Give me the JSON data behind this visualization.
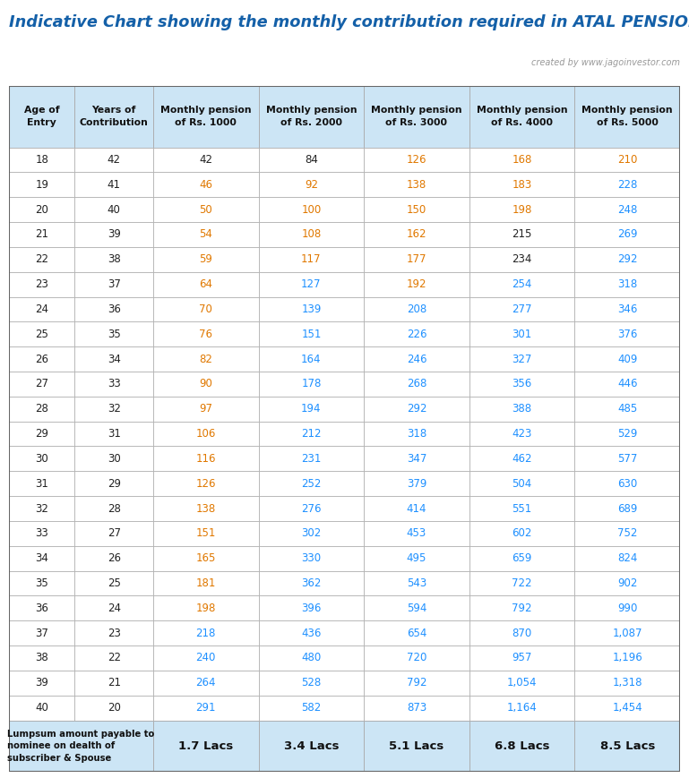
{
  "title": "Indicative Chart showing the monthly contribution required in ATAL PENSION YOJNA",
  "subtitle": "created by www.jagoinvestor.com",
  "col_headers": [
    "Age of\nEntry",
    "Years of\nContribution",
    "Monthly pension\nof Rs. 1000",
    "Monthly pension\nof Rs. 2000",
    "Monthly pension\nof Rs. 3000",
    "Monthly pension\nof Rs. 4000",
    "Monthly pension\nof Rs. 5000"
  ],
  "rows": [
    [
      "18",
      "42",
      "42",
      "84",
      "126",
      "168",
      "210"
    ],
    [
      "19",
      "41",
      "46",
      "92",
      "138",
      "183",
      "228"
    ],
    [
      "20",
      "40",
      "50",
      "100",
      "150",
      "198",
      "248"
    ],
    [
      "21",
      "39",
      "54",
      "108",
      "162",
      "215",
      "269"
    ],
    [
      "22",
      "38",
      "59",
      "117",
      "177",
      "234",
      "292"
    ],
    [
      "23",
      "37",
      "64",
      "127",
      "192",
      "254",
      "318"
    ],
    [
      "24",
      "36",
      "70",
      "139",
      "208",
      "277",
      "346"
    ],
    [
      "25",
      "35",
      "76",
      "151",
      "226",
      "301",
      "376"
    ],
    [
      "26",
      "34",
      "82",
      "164",
      "246",
      "327",
      "409"
    ],
    [
      "27",
      "33",
      "90",
      "178",
      "268",
      "356",
      "446"
    ],
    [
      "28",
      "32",
      "97",
      "194",
      "292",
      "388",
      "485"
    ],
    [
      "29",
      "31",
      "106",
      "212",
      "318",
      "423",
      "529"
    ],
    [
      "30",
      "30",
      "116",
      "231",
      "347",
      "462",
      "577"
    ],
    [
      "31",
      "29",
      "126",
      "252",
      "379",
      "504",
      "630"
    ],
    [
      "32",
      "28",
      "138",
      "276",
      "414",
      "551",
      "689"
    ],
    [
      "33",
      "27",
      "151",
      "302",
      "453",
      "602",
      "752"
    ],
    [
      "34",
      "26",
      "165",
      "330",
      "495",
      "659",
      "824"
    ],
    [
      "35",
      "25",
      "181",
      "362",
      "543",
      "722",
      "902"
    ],
    [
      "36",
      "24",
      "198",
      "396",
      "594",
      "792",
      "990"
    ],
    [
      "37",
      "23",
      "218",
      "436",
      "654",
      "870",
      "1,087"
    ],
    [
      "38",
      "22",
      "240",
      "480",
      "720",
      "957",
      "1,196"
    ],
    [
      "39",
      "21",
      "264",
      "528",
      "792",
      "1,054",
      "1,318"
    ],
    [
      "40",
      "20",
      "291",
      "582",
      "873",
      "1,164",
      "1,454"
    ]
  ],
  "footer_label": "Lumpsum amount payable to\nnominee on dealth of\nsubscriber & Spouse",
  "footer_values": [
    "1.7 Lacs",
    "3.4 Lacs",
    "5.1 Lacs",
    "6.8 Lacs",
    "8.5 Lacs"
  ],
  "color_orange": "#E07800",
  "color_blue": "#1E90FF",
  "color_dark": "#222222",
  "header_bg": "#cce5f5",
  "title_color": "#1460A8",
  "border_color": "#aaaaaa",
  "cell_colors": [
    [
      "dark",
      "dark",
      "dark",
      "dark",
      "orange",
      "orange",
      "orange"
    ],
    [
      "dark",
      "dark",
      "orange",
      "orange",
      "orange",
      "orange",
      "blue"
    ],
    [
      "dark",
      "dark",
      "orange",
      "orange",
      "orange",
      "orange",
      "blue"
    ],
    [
      "dark",
      "dark",
      "orange",
      "orange",
      "orange",
      "dark",
      "blue"
    ],
    [
      "dark",
      "dark",
      "orange",
      "orange",
      "orange",
      "dark",
      "blue"
    ],
    [
      "dark",
      "dark",
      "orange",
      "blue",
      "orange",
      "blue",
      "blue"
    ],
    [
      "dark",
      "dark",
      "orange",
      "blue",
      "blue",
      "blue",
      "blue"
    ],
    [
      "dark",
      "dark",
      "orange",
      "blue",
      "blue",
      "blue",
      "blue"
    ],
    [
      "dark",
      "dark",
      "orange",
      "blue",
      "blue",
      "blue",
      "blue"
    ],
    [
      "dark",
      "dark",
      "orange",
      "blue",
      "blue",
      "blue",
      "blue"
    ],
    [
      "dark",
      "dark",
      "orange",
      "blue",
      "blue",
      "blue",
      "blue"
    ],
    [
      "dark",
      "dark",
      "orange",
      "blue",
      "blue",
      "blue",
      "blue"
    ],
    [
      "dark",
      "dark",
      "orange",
      "blue",
      "blue",
      "blue",
      "blue"
    ],
    [
      "dark",
      "dark",
      "orange",
      "blue",
      "blue",
      "blue",
      "blue"
    ],
    [
      "dark",
      "dark",
      "orange",
      "blue",
      "blue",
      "blue",
      "blue"
    ],
    [
      "dark",
      "dark",
      "orange",
      "blue",
      "blue",
      "blue",
      "blue"
    ],
    [
      "dark",
      "dark",
      "orange",
      "blue",
      "blue",
      "blue",
      "blue"
    ],
    [
      "dark",
      "dark",
      "orange",
      "blue",
      "blue",
      "blue",
      "blue"
    ],
    [
      "dark",
      "dark",
      "orange",
      "blue",
      "blue",
      "blue",
      "blue"
    ],
    [
      "dark",
      "dark",
      "blue",
      "blue",
      "blue",
      "blue",
      "blue"
    ],
    [
      "dark",
      "dark",
      "blue",
      "blue",
      "blue",
      "blue",
      "blue"
    ],
    [
      "dark",
      "dark",
      "blue",
      "blue",
      "blue",
      "blue",
      "blue"
    ],
    [
      "dark",
      "dark",
      "blue",
      "blue",
      "blue",
      "blue",
      "blue"
    ]
  ]
}
